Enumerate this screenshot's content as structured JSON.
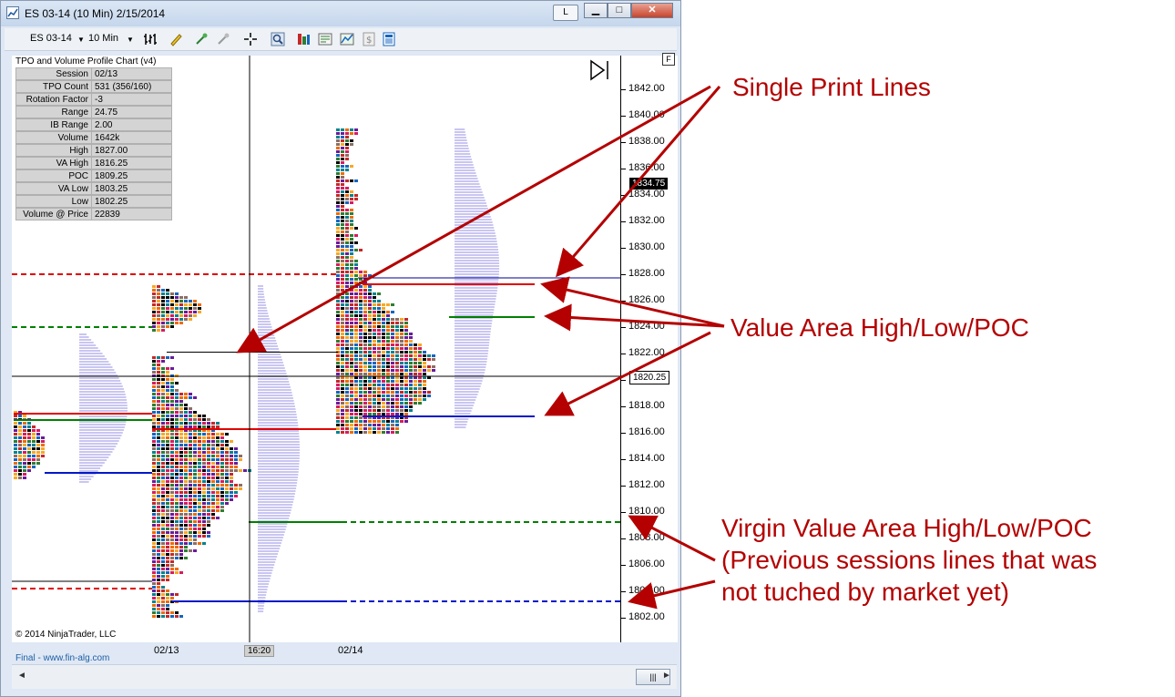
{
  "window": {
    "title": "ES 03-14 (10 Min)  2/15/2014",
    "link_button": "L",
    "minimize": "▁",
    "maximize": "□",
    "close": "✕"
  },
  "toolbar": {
    "instrument": "ES 03-14",
    "interval": "10 Min"
  },
  "info_panel": {
    "title": "TPO and Volume Profile Chart (v4)",
    "rows": [
      {
        "key": "Session",
        "value": "02/13"
      },
      {
        "key": "TPO Count",
        "value": "531 (356/160)"
      },
      {
        "key": "Rotation Factor",
        "value": "-3"
      },
      {
        "key": "Range",
        "value": "24.75"
      },
      {
        "key": "IB Range",
        "value": "2.00"
      },
      {
        "key": "Volume",
        "value": "1642k"
      },
      {
        "key": "High",
        "value": "1827.00"
      },
      {
        "key": "VA High",
        "value": "1816.25"
      },
      {
        "key": "POC",
        "value": "1809.25"
      },
      {
        "key": "VA Low",
        "value": "1803.25"
      },
      {
        "key": "Low",
        "value": "1802.25"
      },
      {
        "key": "Volume @ Price",
        "value": "22839"
      }
    ]
  },
  "price_axis": {
    "labels": [
      "1842.00",
      "1840.00",
      "1838.00",
      "1836.00",
      "1834.00",
      "1832.00",
      "1830.00",
      "1828.00",
      "1826.00",
      "1824.00",
      "1822.00",
      "1820.00",
      "1818.00",
      "1816.00",
      "1814.00",
      "1812.00",
      "1810.00",
      "1808.00",
      "1806.00",
      "1804.00",
      "1802.00"
    ],
    "last_price": "1834.75",
    "crosshair_price": "1820.25",
    "f_button": "F"
  },
  "copyright": "© 2014 NinjaTrader, LLC",
  "date_axis": {
    "dates": [
      "02/13",
      "02/14"
    ],
    "crosshair_time": "16:20"
  },
  "footer_link": "Final - www.fin-alg.com",
  "scrollbar": {
    "thumb": "|||",
    "left_arrow": "◄",
    "right_arrow": "►"
  },
  "annotations": {
    "single_print": "Single Print Lines",
    "value_area": "Value Area High/Low/POC",
    "virgin_line1": "Virgin Value Area High/Low/POC",
    "virgin_line2": "(Previous sessions lines that was",
    "virgin_line3": "not tuched by market yet)"
  },
  "colors": {
    "annotation": "#b40000",
    "va_high": "#e00000",
    "poc": "#008000",
    "va_low": "#0018c8",
    "volume_profile": "#c9c6f2"
  }
}
